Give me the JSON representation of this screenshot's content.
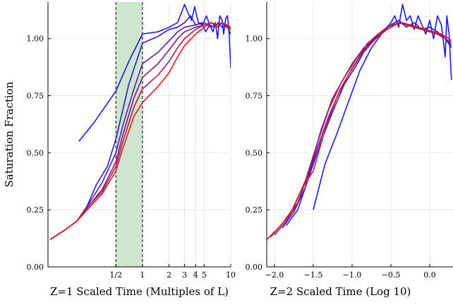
{
  "chart_data": [
    {
      "type": "line",
      "xlabel": "Z=1 Scaled Time (Multiples of L)",
      "ylabel": "Saturation Fraction",
      "x_scale": "log",
      "xlim": [
        0.085,
        10
      ],
      "ylim": [
        0,
        1.16
      ],
      "grid": true,
      "x_ticks": [
        0.5,
        1,
        2,
        3,
        4,
        5,
        10
      ],
      "x_tick_labels": [
        "1/2",
        "1",
        "2",
        "3",
        "4",
        "5",
        "10"
      ],
      "y_ticks": [
        0,
        0.25,
        0.5,
        0.75,
        1.0
      ],
      "y_tick_labels": [
        "0.00",
        "0.25",
        "0.50",
        "0.75",
        "1.00"
      ],
      "shaded_region": {
        "x_start": 0.5,
        "x_end": 1,
        "color": "#cfe5cd",
        "edge_style": "dashed"
      },
      "series": [
        {
          "color": "#1a1af0",
          "points": [
            [
              0.19,
              0.55
            ],
            [
              0.28,
              0.63
            ],
            [
              0.5,
              0.77
            ],
            [
              0.7,
              0.9
            ],
            [
              1.0,
              1.02
            ],
            [
              1.5,
              1.03
            ],
            [
              2.0,
              1.05
            ],
            [
              2.5,
              1.07
            ],
            [
              3.0,
              1.15
            ],
            [
              3.3,
              1.11
            ],
            [
              3.6,
              1.08
            ],
            [
              3.9,
              1.14
            ],
            [
              4.3,
              1.07
            ],
            [
              4.8,
              1.06
            ],
            [
              5.3,
              1.1
            ],
            [
              5.9,
              1.05
            ],
            [
              6.3,
              1.03
            ],
            [
              6.7,
              1.07
            ],
            [
              7.1,
              1.0
            ],
            [
              7.5,
              1.1
            ],
            [
              8.0,
              1.08
            ],
            [
              8.3,
              1.02
            ],
            [
              8.8,
              1.09
            ],
            [
              9.2,
              1.1
            ],
            [
              9.6,
              1.02
            ],
            [
              10,
              0.87
            ]
          ]
        },
        {
          "color": "#2b1adc",
          "points": [
            [
              0.09,
              0.12
            ],
            [
              0.13,
              0.16
            ],
            [
              0.18,
              0.2
            ],
            [
              0.22,
              0.24
            ],
            [
              0.3,
              0.36
            ],
            [
              0.4,
              0.44
            ],
            [
              0.5,
              0.56
            ],
            [
              0.7,
              0.8
            ],
            [
              1.0,
              0.98
            ],
            [
              1.5,
              1.01
            ],
            [
              2.0,
              1.04
            ],
            [
              2.5,
              1.05
            ],
            [
              3.0,
              1.07
            ],
            [
              3.5,
              1.1
            ],
            [
              4.0,
              1.06
            ],
            [
              4.7,
              1.07
            ],
            [
              5.2,
              1.03
            ],
            [
              5.8,
              1.06
            ],
            [
              6.5,
              1.05
            ],
            [
              7.2,
              1.07
            ],
            [
              8.0,
              1.05
            ],
            [
              9.0,
              1.06
            ],
            [
              10,
              1.02
            ]
          ]
        },
        {
          "color": "#5a1aa8",
          "points": [
            [
              0.09,
              0.12
            ],
            [
              0.13,
              0.16
            ],
            [
              0.18,
              0.2
            ],
            [
              0.25,
              0.28
            ],
            [
              0.35,
              0.37
            ],
            [
              0.5,
              0.5
            ],
            [
              0.6,
              0.62
            ],
            [
              0.8,
              0.78
            ],
            [
              1.0,
              0.89
            ],
            [
              1.5,
              0.94
            ],
            [
              2.0,
              0.99
            ],
            [
              2.5,
              1.03
            ],
            [
              3.0,
              1.05
            ],
            [
              4.0,
              1.06
            ],
            [
              5.0,
              1.07
            ],
            [
              6.0,
              1.05
            ],
            [
              7.0,
              1.06
            ],
            [
              8.0,
              1.07
            ],
            [
              9.0,
              1.05
            ],
            [
              10,
              1.04
            ]
          ]
        },
        {
          "color": "#7a1a85",
          "points": [
            [
              0.09,
              0.12
            ],
            [
              0.13,
              0.16
            ],
            [
              0.18,
              0.2
            ],
            [
              0.25,
              0.27
            ],
            [
              0.35,
              0.34
            ],
            [
              0.5,
              0.46
            ],
            [
              0.6,
              0.58
            ],
            [
              0.8,
              0.74
            ],
            [
              1.0,
              0.83
            ],
            [
              1.5,
              0.89
            ],
            [
              2.0,
              0.95
            ],
            [
              2.5,
              1.0
            ],
            [
              3.0,
              1.03
            ],
            [
              4.0,
              1.05
            ],
            [
              5.0,
              1.06
            ],
            [
              6.0,
              1.07
            ],
            [
              7.0,
              1.05
            ],
            [
              8.0,
              1.07
            ],
            [
              9.0,
              1.06
            ],
            [
              10,
              1.04
            ]
          ]
        },
        {
          "color": "#a81a5a",
          "points": [
            [
              0.09,
              0.12
            ],
            [
              0.13,
              0.16
            ],
            [
              0.18,
              0.2
            ],
            [
              0.25,
              0.27
            ],
            [
              0.35,
              0.33
            ],
            [
              0.5,
              0.44
            ],
            [
              0.6,
              0.55
            ],
            [
              0.8,
              0.7
            ],
            [
              1.0,
              0.78
            ],
            [
              1.5,
              0.84
            ],
            [
              2.0,
              0.9
            ],
            [
              2.5,
              0.96
            ],
            [
              3.0,
              1.0
            ],
            [
              4.0,
              1.04
            ],
            [
              5.0,
              1.06
            ],
            [
              6.0,
              1.07
            ],
            [
              7.0,
              1.06
            ],
            [
              8.0,
              1.07
            ],
            [
              9.0,
              1.06
            ],
            [
              10,
              1.05
            ]
          ]
        },
        {
          "color": "#e01a1a",
          "points": [
            [
              0.09,
              0.12
            ],
            [
              0.13,
              0.16
            ],
            [
              0.18,
              0.2
            ],
            [
              0.25,
              0.26
            ],
            [
              0.35,
              0.32
            ],
            [
              0.5,
              0.42
            ],
            [
              0.6,
              0.52
            ],
            [
              0.8,
              0.66
            ],
            [
              1.0,
              0.72
            ],
            [
              1.5,
              0.79
            ],
            [
              2.0,
              0.85
            ],
            [
              2.5,
              0.92
            ],
            [
              3.0,
              0.97
            ],
            [
              4.0,
              1.02
            ],
            [
              5.0,
              1.05
            ],
            [
              6.0,
              1.07
            ],
            [
              7.0,
              1.06
            ],
            [
              8.0,
              1.07
            ],
            [
              9.0,
              1.06
            ],
            [
              10,
              1.04
            ]
          ]
        }
      ]
    },
    {
      "type": "line",
      "xlabel": "Z=2 Scaled Time (Log 10)",
      "ylabel": "",
      "x_scale": "linear",
      "xlim": [
        -2.1,
        0.3
      ],
      "ylim": [
        0,
        1.16
      ],
      "grid": true,
      "x_ticks": [
        -2.0,
        -1.5,
        -1.0,
        -0.5,
        0.0
      ],
      "x_tick_labels": [
        "−2.0",
        "−1.5",
        "−1.0",
        "−0.5",
        "0.0"
      ],
      "y_ticks": [
        0,
        0.25,
        0.5,
        0.75,
        1.0
      ],
      "y_tick_labels": [
        "0.00",
        "0.25",
        "0.50",
        "0.75",
        "1.00"
      ],
      "series": [
        {
          "color": "#1a1af0",
          "points": [
            [
              -1.5,
              0.25
            ],
            [
              -1.35,
              0.45
            ],
            [
              -1.2,
              0.58
            ],
            [
              -1.05,
              0.72
            ],
            [
              -0.9,
              0.86
            ],
            [
              -0.75,
              0.96
            ],
            [
              -0.6,
              1.03
            ],
            [
              -0.5,
              1.07
            ],
            [
              -0.45,
              1.1
            ],
            [
              -0.4,
              1.05
            ],
            [
              -0.35,
              1.15
            ],
            [
              -0.3,
              1.08
            ],
            [
              -0.25,
              1.1
            ],
            [
              -0.2,
              1.04
            ],
            [
              -0.15,
              1.1
            ],
            [
              -0.1,
              1.06
            ],
            [
              -0.05,
              1.02
            ],
            [
              0.0,
              1.08
            ],
            [
              0.05,
              1.0
            ],
            [
              0.1,
              1.1
            ],
            [
              0.15,
              1.06
            ],
            [
              0.2,
              0.92
            ],
            [
              0.22,
              1.1
            ],
            [
              0.25,
              1.02
            ],
            [
              0.28,
              0.82
            ]
          ]
        },
        {
          "color": "#2b1adc",
          "points": [
            [
              -1.85,
              0.18
            ],
            [
              -1.7,
              0.25
            ],
            [
              -1.55,
              0.4
            ],
            [
              -1.4,
              0.55
            ],
            [
              -1.25,
              0.68
            ],
            [
              -1.1,
              0.8
            ],
            [
              -0.95,
              0.88
            ],
            [
              -0.8,
              0.97
            ],
            [
              -0.65,
              1.02
            ],
            [
              -0.5,
              1.06
            ],
            [
              -0.4,
              1.08
            ],
            [
              -0.3,
              1.05
            ],
            [
              -0.2,
              1.07
            ],
            [
              -0.1,
              1.04
            ],
            [
              0.0,
              1.05
            ],
            [
              0.1,
              1.03
            ],
            [
              0.2,
              1.0
            ],
            [
              0.28,
              0.96
            ]
          ]
        },
        {
          "color": "#5a1aa8",
          "points": [
            [
              -1.9,
              0.17
            ],
            [
              -1.75,
              0.24
            ],
            [
              -1.6,
              0.35
            ],
            [
              -1.45,
              0.52
            ],
            [
              -1.3,
              0.66
            ],
            [
              -1.15,
              0.78
            ],
            [
              -1.0,
              0.87
            ],
            [
              -0.85,
              0.95
            ],
            [
              -0.7,
              1.0
            ],
            [
              -0.55,
              1.04
            ],
            [
              -0.4,
              1.07
            ],
            [
              -0.3,
              1.06
            ],
            [
              -0.2,
              1.05
            ],
            [
              -0.1,
              1.04
            ],
            [
              0.0,
              1.03
            ],
            [
              0.1,
              1.02
            ],
            [
              0.2,
              1.0
            ],
            [
              0.28,
              0.97
            ]
          ]
        },
        {
          "color": "#7a1a85",
          "points": [
            [
              -2.0,
              0.14
            ],
            [
              -1.85,
              0.2
            ],
            [
              -1.7,
              0.28
            ],
            [
              -1.55,
              0.42
            ],
            [
              -1.4,
              0.6
            ],
            [
              -1.25,
              0.74
            ],
            [
              -1.1,
              0.83
            ],
            [
              -0.95,
              0.91
            ],
            [
              -0.8,
              0.98
            ],
            [
              -0.65,
              1.02
            ],
            [
              -0.5,
              1.05
            ],
            [
              -0.4,
              1.07
            ],
            [
              -0.3,
              1.06
            ],
            [
              -0.2,
              1.05
            ],
            [
              -0.1,
              1.04
            ],
            [
              0.0,
              1.03
            ],
            [
              0.1,
              1.02
            ],
            [
              0.2,
              1.0
            ],
            [
              0.28,
              0.98
            ]
          ]
        },
        {
          "color": "#a81a5a",
          "points": [
            [
              -2.05,
              0.13
            ],
            [
              -1.9,
              0.19
            ],
            [
              -1.75,
              0.26
            ],
            [
              -1.6,
              0.38
            ],
            [
              -1.45,
              0.54
            ],
            [
              -1.3,
              0.69
            ],
            [
              -1.15,
              0.8
            ],
            [
              -1.0,
              0.89
            ],
            [
              -0.85,
              0.96
            ],
            [
              -0.7,
              1.01
            ],
            [
              -0.55,
              1.05
            ],
            [
              -0.4,
              1.07
            ],
            [
              -0.3,
              1.06
            ],
            [
              -0.2,
              1.05
            ],
            [
              -0.1,
              1.04
            ],
            [
              0.0,
              1.03
            ],
            [
              0.1,
              1.02
            ],
            [
              0.2,
              1.01
            ],
            [
              0.28,
              0.99
            ]
          ]
        },
        {
          "color": "#e01a1a",
          "points": [
            [
              -2.1,
              0.12
            ],
            [
              -1.95,
              0.17
            ],
            [
              -1.8,
              0.23
            ],
            [
              -1.65,
              0.34
            ],
            [
              -1.5,
              0.42
            ],
            [
              -1.35,
              0.6
            ],
            [
              -1.2,
              0.74
            ],
            [
              -1.05,
              0.84
            ],
            [
              -0.9,
              0.92
            ],
            [
              -0.75,
              0.98
            ],
            [
              -0.6,
              1.03
            ],
            [
              -0.45,
              1.06
            ],
            [
              -0.35,
              1.07
            ],
            [
              -0.25,
              1.06
            ],
            [
              -0.15,
              1.05
            ],
            [
              -0.05,
              1.04
            ],
            [
              0.05,
              1.03
            ],
            [
              0.15,
              1.02
            ],
            [
              0.25,
              1.0
            ],
            [
              0.28,
              0.99
            ]
          ]
        }
      ]
    }
  ]
}
